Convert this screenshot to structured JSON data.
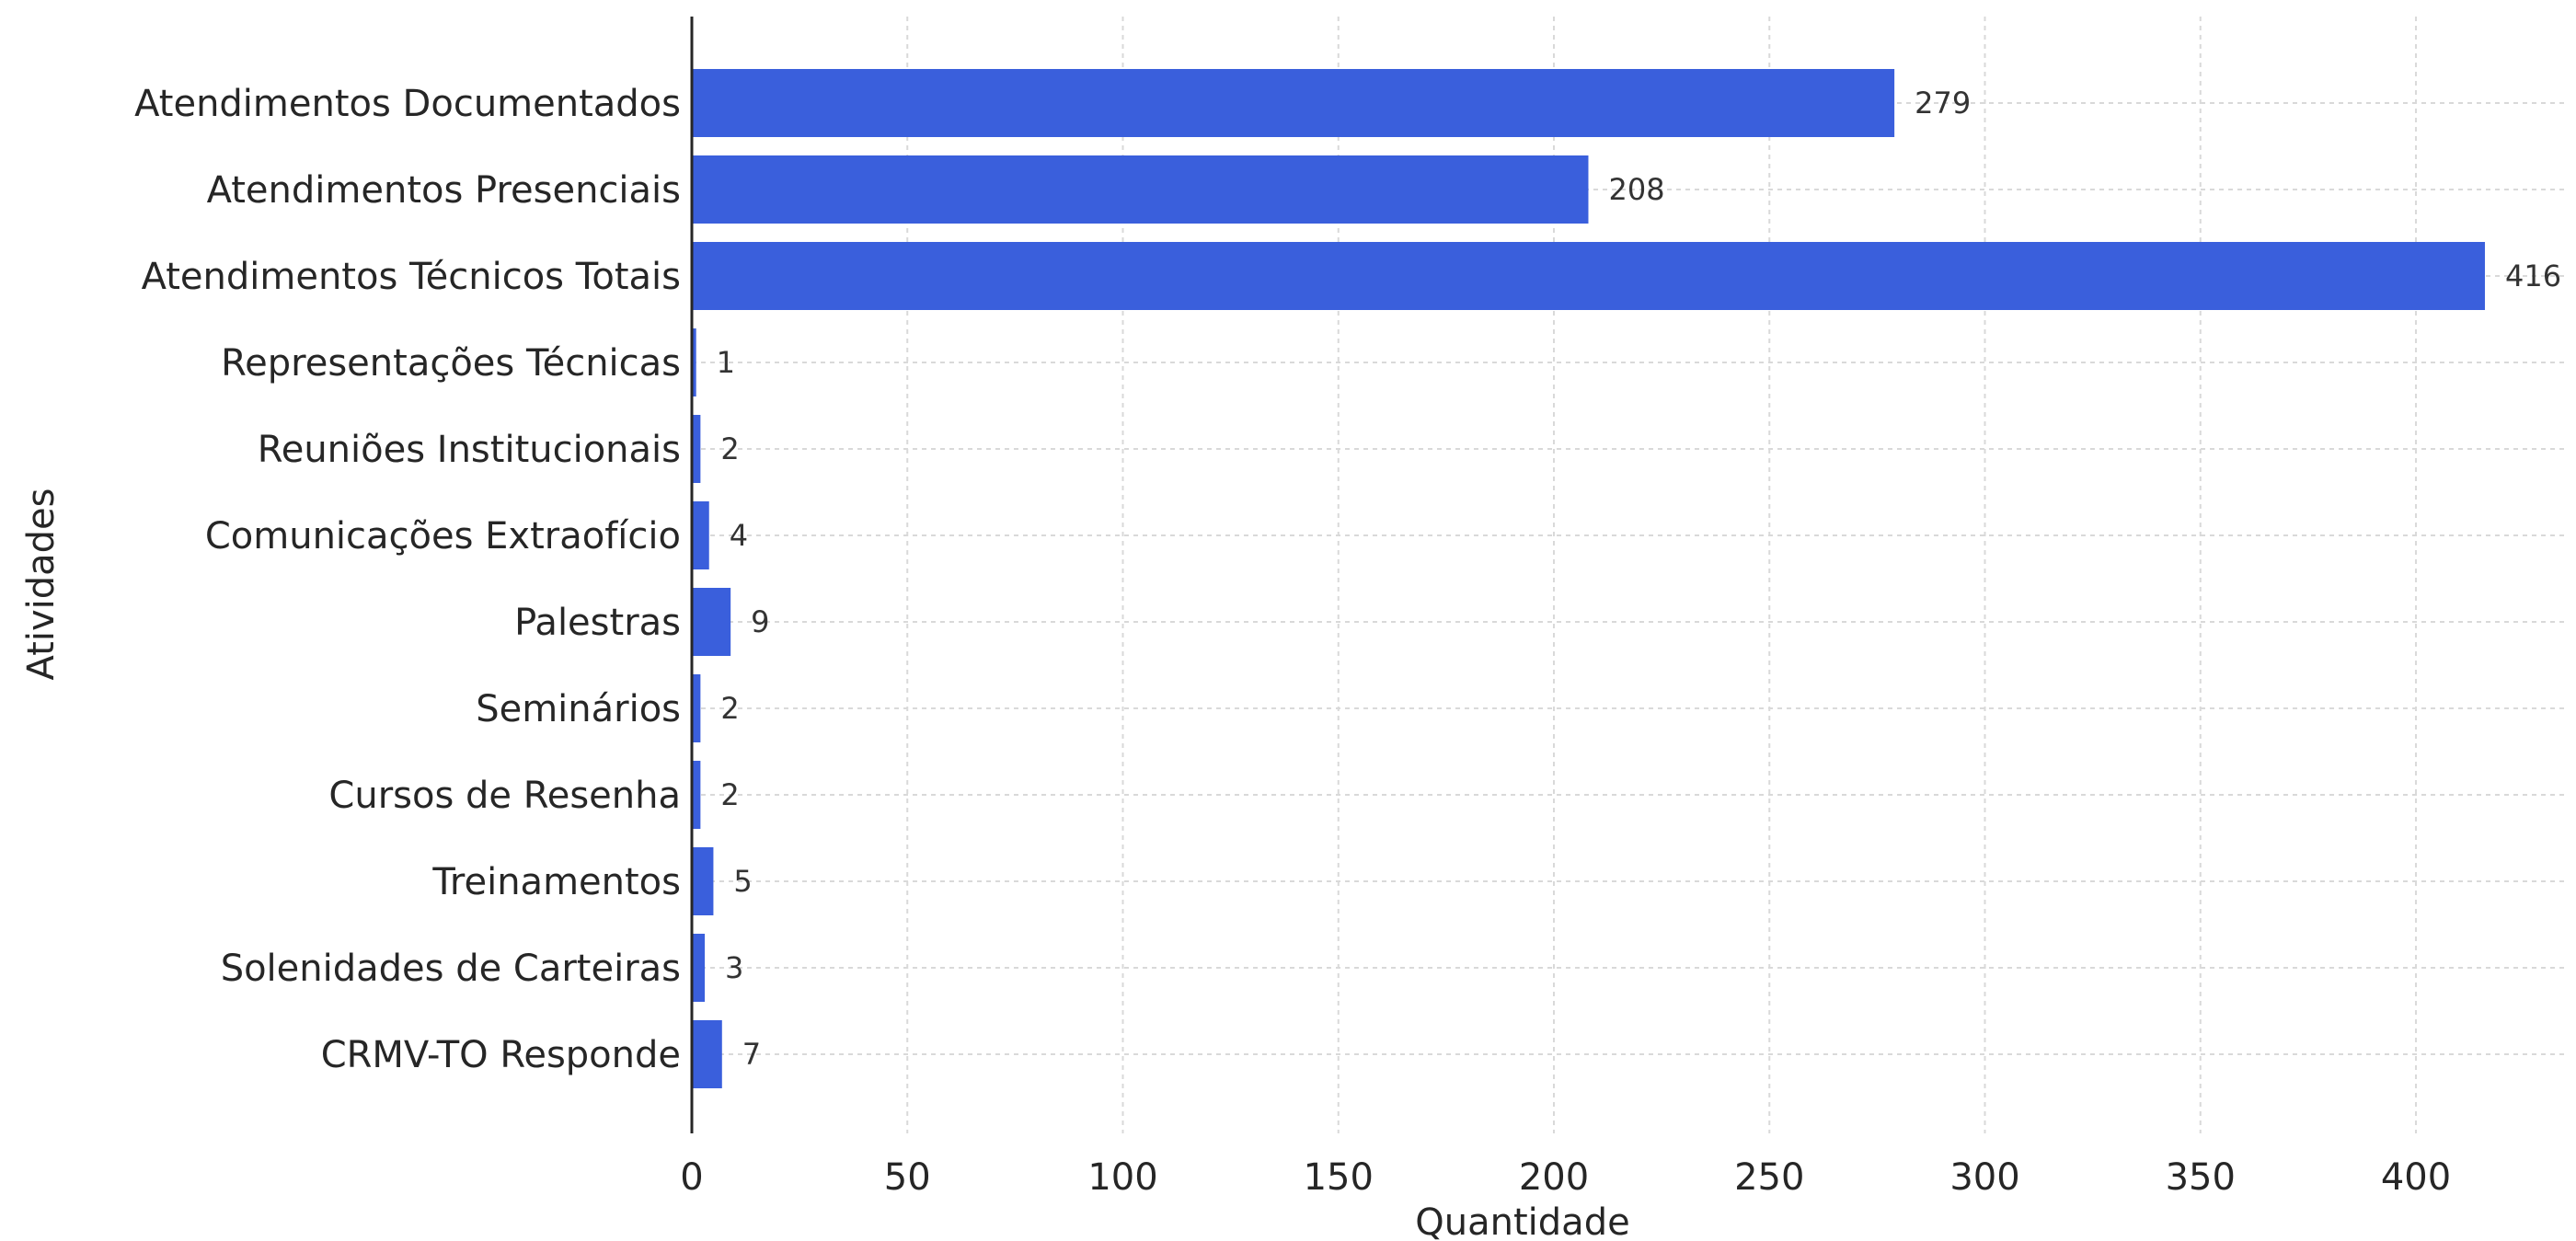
{
  "chart_data": {
    "type": "bar",
    "orientation": "horizontal",
    "title": "",
    "xlabel": "Quantidade",
    "ylabel": "Atividades",
    "categories": [
      "Atendimentos Documentados",
      "Atendimentos Presenciais",
      "Atendimentos Técnicos Totais",
      "Representações Técnicas",
      "Reuniões Institucionais",
      "Comunicações Extraofício",
      "Palestras",
      "Seminários",
      "Cursos de Resenha",
      "Treinamentos",
      "Solenidades de Carteiras",
      "CRMV-TO Responde"
    ],
    "values": [
      279,
      208,
      416,
      1,
      2,
      4,
      9,
      2,
      2,
      5,
      3,
      7
    ],
    "data_labels": [
      "279",
      "208",
      "416",
      "1",
      "2",
      "4",
      "9",
      "2",
      "2",
      "5",
      "3",
      "7"
    ],
    "xticks": [
      "0",
      "50",
      "100",
      "150",
      "200",
      "250",
      "300",
      "350",
      "400"
    ],
    "xlim": [
      0,
      435
    ],
    "grid": true,
    "bar_color": "#3a5fdc",
    "grid_color": "#d9d9d9"
  }
}
